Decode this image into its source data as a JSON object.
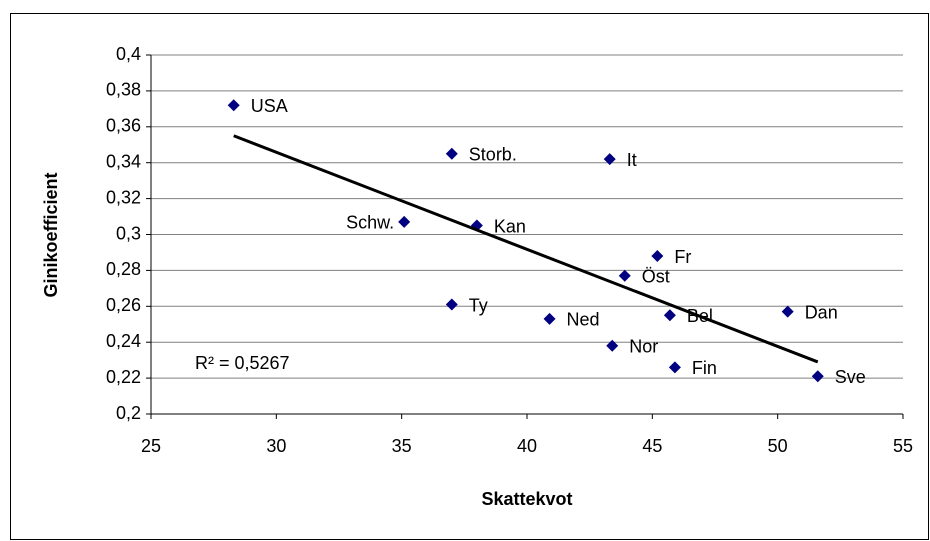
{
  "chart_data": {
    "type": "scatter",
    "xlabel": "Skattekvot",
    "ylabel": "Ginikoefficient",
    "annotation": "R² = 0,5267",
    "labels": [
      "USA",
      "Storb.",
      "It",
      "Schw.",
      "Kan",
      "Fr",
      "Öst",
      "Ty",
      "Ned",
      "Bel",
      "Dan",
      "Nor",
      "Fin",
      "Sve"
    ],
    "x": [
      28.3,
      37.0,
      43.3,
      35.1,
      38.0,
      45.2,
      43.9,
      37.0,
      40.9,
      45.7,
      50.4,
      43.4,
      45.9,
      51.6
    ],
    "values": [
      0.372,
      0.345,
      0.342,
      0.307,
      0.305,
      0.288,
      0.277,
      0.261,
      0.253,
      0.255,
      0.257,
      0.238,
      0.226,
      0.221
    ],
    "color": "#000080",
    "trendline": {
      "x": [
        28.3,
        51.6
      ],
      "y": [
        0.355,
        0.229
      ],
      "color": "#000000"
    },
    "xlim": [
      25,
      55
    ],
    "xticks": [
      25,
      30,
      35,
      40,
      45,
      50,
      55
    ],
    "ylim": [
      0.2,
      0.4
    ],
    "yticks": [
      {
        "value": 0.2,
        "label": "0,2"
      },
      {
        "value": 0.22,
        "label": "0,22"
      },
      {
        "value": 0.24,
        "label": "0,24"
      },
      {
        "value": 0.26,
        "label": "0,26"
      },
      {
        "value": 0.28,
        "label": "0,28"
      },
      {
        "value": 0.3,
        "label": "0,3"
      },
      {
        "value": 0.32,
        "label": "0,32"
      },
      {
        "value": 0.34,
        "label": "0,34"
      },
      {
        "value": 0.36,
        "label": "0,36"
      },
      {
        "value": 0.38,
        "label": "0,38"
      },
      {
        "value": 0.4,
        "label": "0,4"
      }
    ],
    "grid": true
  }
}
